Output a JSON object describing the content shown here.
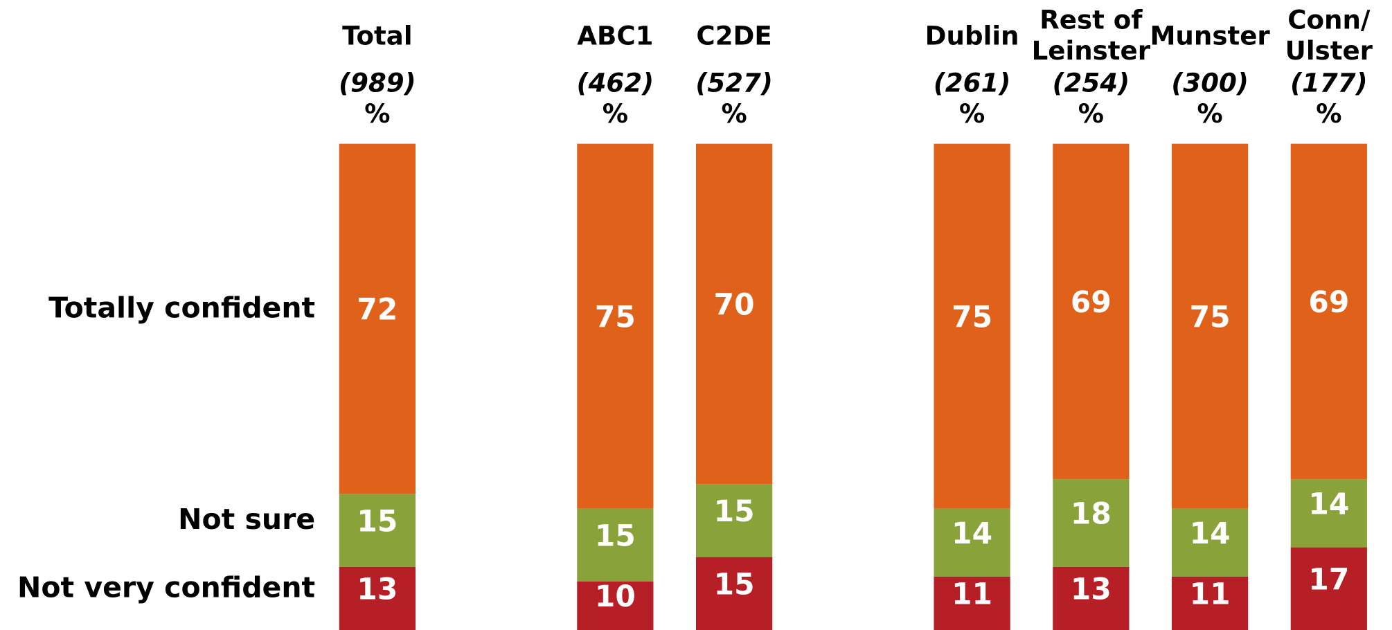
{
  "chart_data": {
    "type": "bar",
    "stacked": true,
    "categories": [
      [
        "Total"
      ],
      [
        "ABC1"
      ],
      [
        "C2DE"
      ],
      [
        "Dublin"
      ],
      [
        "Rest of",
        "Leinster"
      ],
      [
        "Munster"
      ],
      [
        "Conn/",
        "Ulster"
      ]
    ],
    "base_sizes": [
      "(989)",
      "(462)",
      "(527)",
      "(261)",
      "(254)",
      "(300)",
      "(177)"
    ],
    "unit": "%",
    "series": [
      {
        "name": "Not very confident",
        "color": "#b71f26",
        "values": [
          13,
          10,
          15,
          11,
          13,
          11,
          17
        ]
      },
      {
        "name": "Not sure",
        "color": "#8aa23a",
        "values": [
          15,
          15,
          15,
          14,
          18,
          14,
          14
        ]
      },
      {
        "name": "Totally confident",
        "color": "#e0621a",
        "values": [
          72,
          75,
          70,
          75,
          69,
          75,
          69
        ]
      }
    ]
  }
}
